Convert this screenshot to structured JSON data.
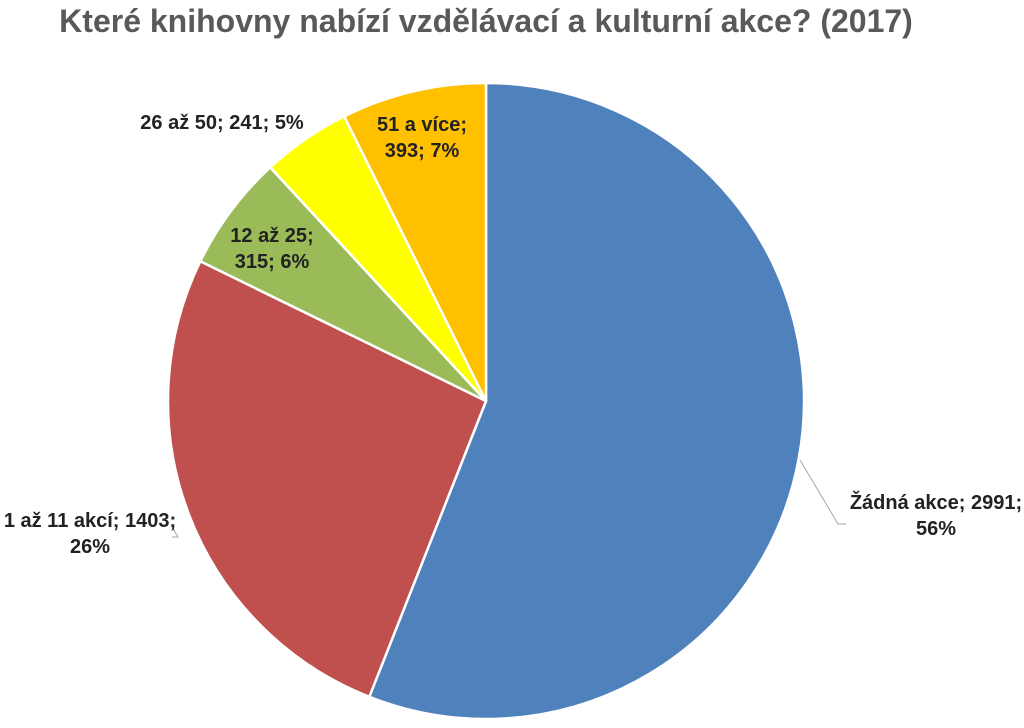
{
  "chart_data": {
    "type": "pie",
    "title": "Které knihovny nabízí vzdělávací a kulturní akce? (2017)",
    "colors": {
      "text": "#222222",
      "title": "#595959",
      "slice_border": "#ffffff",
      "leader_line": "#a6a6a6"
    },
    "slices": [
      {
        "name": "Žádná akce",
        "value": 2991,
        "percent": 56,
        "color": "#4f81bd",
        "label_lines": [
          "Žádná akce; 2991;",
          "56%"
        ]
      },
      {
        "name": "1 až 11 akcí",
        "value": 1403,
        "percent": 26,
        "color": "#c0504d",
        "label_lines": [
          "1 až 11 akcí; 1403;",
          "26%"
        ]
      },
      {
        "name": "12 až 25",
        "value": 315,
        "percent": 6,
        "color": "#9bbb59",
        "label_lines": [
          "12 až 25;",
          "315; 6%"
        ]
      },
      {
        "name": "26 až 50",
        "value": 241,
        "percent": 5,
        "color": "#ffff00",
        "label_lines": [
          "26 až 50; 241; 5%"
        ]
      },
      {
        "name": "51 a více",
        "value": 393,
        "percent": 7,
        "color": "#ffc000",
        "label_lines": [
          "51 a více;",
          "393; 7%"
        ]
      }
    ]
  }
}
